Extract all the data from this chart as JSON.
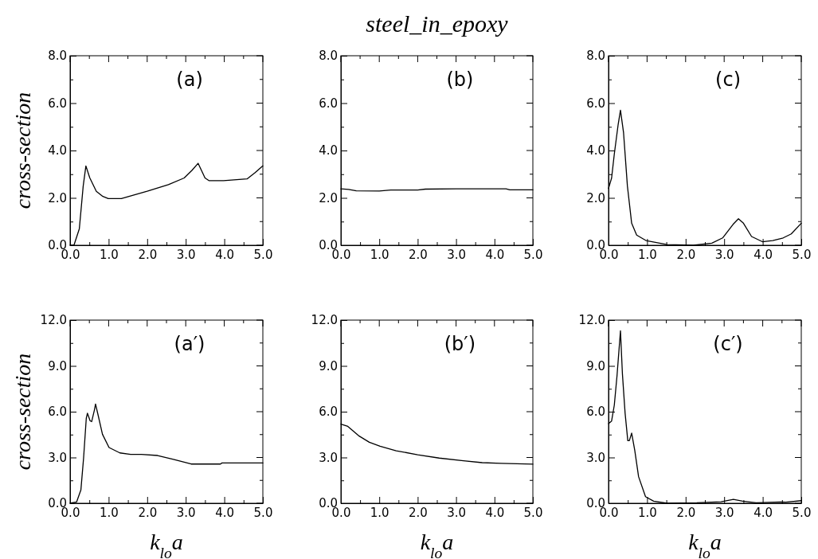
{
  "chart_data": [
    {
      "type": "line",
      "ylabel": "cross-section",
      "annotations": [
        "(a)"
      ],
      "line_style": "solid",
      "marker": "none",
      "grid": false,
      "xlim": [
        0,
        5
      ],
      "ylim": [
        0,
        8
      ],
      "xticks": [
        {
          "value": 0,
          "label": "0.0"
        },
        {
          "value": 0.5,
          "label": null
        },
        {
          "value": 1,
          "label": "1.0"
        },
        {
          "value": 1.5,
          "label": null
        },
        {
          "value": 2,
          "label": "2.0"
        },
        {
          "value": 2.5,
          "label": null
        },
        {
          "value": 3,
          "label": "3.0"
        },
        {
          "value": 3.5,
          "label": null
        },
        {
          "value": 4,
          "label": "4.0"
        },
        {
          "value": 4.5,
          "label": null
        },
        {
          "value": 5,
          "label": "5.0"
        }
      ],
      "yticks": [
        {
          "value": 0,
          "label": "0.0"
        },
        {
          "value": 1,
          "label": null
        },
        {
          "value": 2,
          "label": "2.0"
        },
        {
          "value": 3,
          "label": null
        },
        {
          "value": 4,
          "label": "4.0"
        },
        {
          "value": 5,
          "label": null
        },
        {
          "value": 6,
          "label": "6.0"
        },
        {
          "value": 7,
          "label": null
        },
        {
          "value": 8,
          "label": "8.0"
        }
      ],
      "series": [
        {
          "color": "#000000",
          "x": [
            0,
            0.1,
            0.24,
            0.34,
            0.41,
            0.51,
            0.68,
            0.85,
            0.99,
            1.33,
            2.0,
            2.55,
            2.96,
            3.16,
            3.32,
            3.5,
            3.6,
            3.98,
            4.59,
            4.8,
            5.0
          ],
          "values": [
            0,
            0,
            0.7,
            2.5,
            3.35,
            2.85,
            2.28,
            2.06,
            1.97,
            1.97,
            2.28,
            2.56,
            2.84,
            3.16,
            3.46,
            2.84,
            2.73,
            2.73,
            2.8,
            3.07,
            3.35
          ]
        }
      ]
    },
    {
      "type": "line",
      "title": "steel_in_epoxy",
      "annotations": [
        "(b)"
      ],
      "line_style": "solid",
      "marker": "none",
      "grid": false,
      "xlim": [
        0,
        5
      ],
      "ylim": [
        0,
        8
      ],
      "xticks": [
        {
          "value": 0,
          "label": "0.0"
        },
        {
          "value": 0.5,
          "label": null
        },
        {
          "value": 1,
          "label": "1.0"
        },
        {
          "value": 1.5,
          "label": null
        },
        {
          "value": 2,
          "label": "2.0"
        },
        {
          "value": 2.5,
          "label": null
        },
        {
          "value": 3,
          "label": "3.0"
        },
        {
          "value": 3.5,
          "label": null
        },
        {
          "value": 4,
          "label": "4.0"
        },
        {
          "value": 4.5,
          "label": null
        },
        {
          "value": 5,
          "label": "5.0"
        }
      ],
      "yticks": [
        {
          "value": 0,
          "label": "0.0"
        },
        {
          "value": 1,
          "label": null
        },
        {
          "value": 2,
          "label": "2.0"
        },
        {
          "value": 3,
          "label": null
        },
        {
          "value": 4,
          "label": "4.0"
        },
        {
          "value": 5,
          "label": null
        },
        {
          "value": 6,
          "label": "6.0"
        },
        {
          "value": 7,
          "label": null
        },
        {
          "value": 8,
          "label": "8.0"
        }
      ],
      "series": [
        {
          "color": "#000000",
          "x": [
            0,
            0.2,
            0.4,
            1.0,
            1.3,
            2.0,
            2.2,
            3.0,
            4.3,
            4.4,
            5.0
          ],
          "values": [
            2.38,
            2.36,
            2.3,
            2.29,
            2.33,
            2.33,
            2.37,
            2.38,
            2.38,
            2.34,
            2.34
          ]
        }
      ]
    },
    {
      "type": "line",
      "annotations": [
        "(c)"
      ],
      "line_style": "solid",
      "marker": "none",
      "grid": false,
      "xlim": [
        0,
        5
      ],
      "ylim": [
        0,
        8
      ],
      "xticks": [
        {
          "value": 0,
          "label": "0.0"
        },
        {
          "value": 0.5,
          "label": null
        },
        {
          "value": 1,
          "label": "1.0"
        },
        {
          "value": 1.5,
          "label": null
        },
        {
          "value": 2,
          "label": "2.0"
        },
        {
          "value": 2.5,
          "label": null
        },
        {
          "value": 3,
          "label": "3.0"
        },
        {
          "value": 3.5,
          "label": null
        },
        {
          "value": 4,
          "label": "4.0"
        },
        {
          "value": 4.5,
          "label": null
        },
        {
          "value": 5,
          "label": "5.0"
        }
      ],
      "yticks": [
        {
          "value": 0,
          "label": "0.0"
        },
        {
          "value": 1,
          "label": null
        },
        {
          "value": 2,
          "label": "2.0"
        },
        {
          "value": 3,
          "label": null
        },
        {
          "value": 4,
          "label": "4.0"
        },
        {
          "value": 5,
          "label": null
        },
        {
          "value": 6,
          "label": "6.0"
        },
        {
          "value": 7,
          "label": null
        },
        {
          "value": 8,
          "label": "8.0"
        }
      ],
      "series": [
        {
          "color": "#000000",
          "x": [
            0,
            0.08,
            0.15,
            0.25,
            0.31,
            0.39,
            0.49,
            0.6,
            0.73,
            0.97,
            1.52,
            2.2,
            2.68,
            2.96,
            3.23,
            3.37,
            3.5,
            3.71,
            3.99,
            4.26,
            4.53,
            4.74,
            5.0
          ],
          "values": [
            2.4,
            2.84,
            3.85,
            5.1,
            5.7,
            4.75,
            2.5,
            0.93,
            0.43,
            0.2,
            0.03,
            0,
            0.09,
            0.31,
            0.88,
            1.12,
            0.93,
            0.37,
            0.15,
            0.2,
            0.31,
            0.48,
            0.93
          ]
        }
      ]
    },
    {
      "type": "line",
      "ylabel": "cross-section",
      "xlabel": "k$_{lo}$a",
      "annotations": [
        "(a′)"
      ],
      "line_style": "solid",
      "marker": "none",
      "grid": false,
      "xlim": [
        0,
        5
      ],
      "ylim": [
        0,
        12
      ],
      "xticks": [
        {
          "value": 0,
          "label": "0.0"
        },
        {
          "value": 0.5,
          "label": null
        },
        {
          "value": 1,
          "label": "1.0"
        },
        {
          "value": 1.5,
          "label": null
        },
        {
          "value": 2,
          "label": "2.0"
        },
        {
          "value": 2.5,
          "label": null
        },
        {
          "value": 3,
          "label": "3.0"
        },
        {
          "value": 3.5,
          "label": null
        },
        {
          "value": 4,
          "label": "4.0"
        },
        {
          "value": 4.5,
          "label": null
        },
        {
          "value": 5,
          "label": "5.0"
        }
      ],
      "yticks": [
        {
          "value": 0,
          "label": "0.0"
        },
        {
          "value": 1.5,
          "label": null
        },
        {
          "value": 3,
          "label": "3.0"
        },
        {
          "value": 4.5,
          "label": null
        },
        {
          "value": 6,
          "label": "6.0"
        },
        {
          "value": 7.5,
          "label": null
        },
        {
          "value": 9,
          "label": "9.0"
        },
        {
          "value": 10.5,
          "label": null
        },
        {
          "value": 12,
          "label": "12.0"
        }
      ],
      "series": [
        {
          "color": "#000000",
          "x": [
            0,
            0.17,
            0.28,
            0.35,
            0.42,
            0.45,
            0.52,
            0.56,
            0.63,
            0.66,
            0.73,
            0.84,
            1.01,
            1.29,
            1.57,
            1.85,
            2.27,
            2.68,
            3.14,
            3.9,
            3.94,
            5.0
          ],
          "values": [
            0,
            0.09,
            0.87,
            2.96,
            5.57,
            5.9,
            5.4,
            5.35,
            6.1,
            6.5,
            5.74,
            4.52,
            3.65,
            3.3,
            3.2,
            3.2,
            3.13,
            2.87,
            2.57,
            2.57,
            2.64,
            2.64
          ]
        }
      ]
    },
    {
      "type": "line",
      "xlabel": "k$_{lo}$a",
      "annotations": [
        "(b′)"
      ],
      "line_style": "solid",
      "marker": "none",
      "grid": false,
      "xlim": [
        0,
        5
      ],
      "ylim": [
        0,
        12
      ],
      "xticks": [
        {
          "value": 0,
          "label": "0.0"
        },
        {
          "value": 0.5,
          "label": null
        },
        {
          "value": 1,
          "label": "1.0"
        },
        {
          "value": 1.5,
          "label": null
        },
        {
          "value": 2,
          "label": "2.0"
        },
        {
          "value": 2.5,
          "label": null
        },
        {
          "value": 3,
          "label": "3.0"
        },
        {
          "value": 3.5,
          "label": null
        },
        {
          "value": 4,
          "label": "4.0"
        },
        {
          "value": 4.5,
          "label": null
        },
        {
          "value": 5,
          "label": "5.0"
        }
      ],
      "yticks": [
        {
          "value": 0,
          "label": "0.0"
        },
        {
          "value": 1.5,
          "label": null
        },
        {
          "value": 3,
          "label": "3.0"
        },
        {
          "value": 4.5,
          "label": null
        },
        {
          "value": 6,
          "label": "6.0"
        },
        {
          "value": 7.5,
          "label": null
        },
        {
          "value": 9,
          "label": "9.0"
        },
        {
          "value": 10.5,
          "label": null
        },
        {
          "value": 12,
          "label": "12.0"
        }
      ],
      "series": [
        {
          "color": "#000000",
          "x": [
            0,
            0.18,
            0.46,
            0.74,
            1.02,
            1.44,
            2.0,
            2.56,
            3.19,
            3.68,
            4.17,
            5.0
          ],
          "values": [
            5.18,
            5.04,
            4.43,
            4.0,
            3.74,
            3.44,
            3.18,
            2.96,
            2.78,
            2.66,
            2.61,
            2.56
          ]
        }
      ]
    },
    {
      "type": "line",
      "xlabel": "k$_{lo}$a",
      "annotations": [
        "(c′)"
      ],
      "line_style": "solid",
      "marker": "none",
      "grid": false,
      "xlim": [
        0,
        5
      ],
      "ylim": [
        0,
        12
      ],
      "xticks": [
        {
          "value": 0,
          "label": "0.0"
        },
        {
          "value": 0.5,
          "label": null
        },
        {
          "value": 1,
          "label": "1.0"
        },
        {
          "value": 1.5,
          "label": null
        },
        {
          "value": 2,
          "label": "2.0"
        },
        {
          "value": 2.5,
          "label": null
        },
        {
          "value": 3,
          "label": "3.0"
        },
        {
          "value": 3.5,
          "label": null
        },
        {
          "value": 4,
          "label": "4.0"
        },
        {
          "value": 4.5,
          "label": null
        },
        {
          "value": 5,
          "label": "5.0"
        }
      ],
      "yticks": [
        {
          "value": 0,
          "label": "0.0"
        },
        {
          "value": 1.5,
          "label": null
        },
        {
          "value": 3,
          "label": "3.0"
        },
        {
          "value": 4.5,
          "label": null
        },
        {
          "value": 6,
          "label": "6.0"
        },
        {
          "value": 7.5,
          "label": null
        },
        {
          "value": 9,
          "label": "9.0"
        },
        {
          "value": 10.5,
          "label": null
        },
        {
          "value": 12,
          "label": "12.0"
        }
      ],
      "series": [
        {
          "color": "#000000",
          "x": [
            0,
            0.08,
            0.15,
            0.22,
            0.31,
            0.36,
            0.43,
            0.5,
            0.54,
            0.6,
            0.68,
            0.78,
            0.96,
            1.17,
            1.52,
            2.29,
            2.92,
            3.24,
            3.48,
            3.83,
            4.46,
            4.6,
            5.0
          ],
          "values": [
            5.22,
            5.39,
            6.43,
            8.35,
            11.3,
            8.5,
            5.9,
            4.1,
            4.1,
            4.6,
            3.48,
            1.74,
            0.43,
            0.14,
            0,
            0.03,
            0.1,
            0.26,
            0.14,
            0.03,
            0.09,
            0.07,
            0.17
          ]
        }
      ]
    }
  ]
}
